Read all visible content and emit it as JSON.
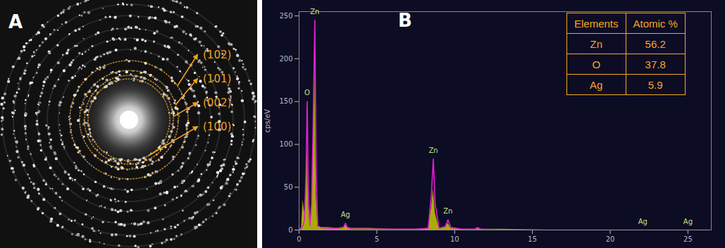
{
  "image_panel": {
    "label": "A",
    "ring_labels": [
      "(102)",
      "(101)",
      "(002)",
      "(100)"
    ]
  },
  "chart_data": {
    "type": "line",
    "panel_label": "B",
    "y_label": "cps/eV",
    "x": [
      0,
      0.15,
      0.25,
      0.35,
      0.45,
      0.52,
      0.6,
      0.7,
      0.8,
      0.9,
      1.01,
      1.1,
      1.2,
      1.4,
      1.8,
      2.5,
      2.85,
      2.98,
      3.1,
      3.4,
      4.5,
      6,
      7.5,
      8.3,
      8.5,
      8.63,
      8.75,
      9.0,
      9.4,
      9.57,
      9.75,
      10.5,
      11.3,
      11.5,
      11.7,
      13,
      16,
      20,
      22.1,
      24,
      25,
      26.3
    ],
    "series": [
      {
        "type": "area",
        "color": "#c8c800",
        "values": [
          0,
          3,
          35,
          20,
          50,
          95,
          30,
          5,
          20,
          90,
          190,
          40,
          4,
          3,
          3,
          2,
          3,
          6,
          3,
          2,
          2,
          1,
          1,
          2,
          25,
          48,
          20,
          2,
          3,
          8,
          2,
          1,
          1,
          3,
          1,
          1,
          0,
          0,
          0,
          0,
          0,
          0
        ]
      },
      {
        "type": "line",
        "color": "#e020d0",
        "values": [
          0,
          2,
          5,
          12,
          70,
          150,
          40,
          5,
          30,
          120,
          245,
          60,
          5,
          3,
          2,
          2,
          3,
          8,
          3,
          1,
          1,
          1,
          1,
          2,
          40,
          83,
          30,
          2,
          4,
          12,
          3,
          1,
          1,
          2,
          1,
          0,
          0,
          0,
          0,
          0,
          0,
          0
        ]
      }
    ],
    "xlim": [
      0,
      26.5
    ],
    "xticks": [
      0,
      5,
      10,
      15,
      20,
      25
    ],
    "ylim": [
      0,
      255
    ],
    "yticks": [
      0,
      50,
      100,
      150,
      200,
      250
    ],
    "grid": false,
    "annotations": [
      {
        "text": "O",
        "x": 0.52
      },
      {
        "text": "Zn",
        "x": 1.01
      },
      {
        "text": "Ag",
        "x": 2.98
      },
      {
        "text": "Zn",
        "x": 8.63
      },
      {
        "text": "Zn",
        "x": 9.57
      },
      {
        "text": "Ag",
        "x": 22.1
      },
      {
        "text": "Ag",
        "x": 25
      }
    ],
    "inset_table": {
      "columns": [
        "Elements",
        "Atomic %"
      ],
      "rows": [
        [
          "Zn",
          56.2
        ],
        [
          "O",
          37.8
        ],
        [
          "Ag",
          5.9
        ]
      ]
    }
  }
}
